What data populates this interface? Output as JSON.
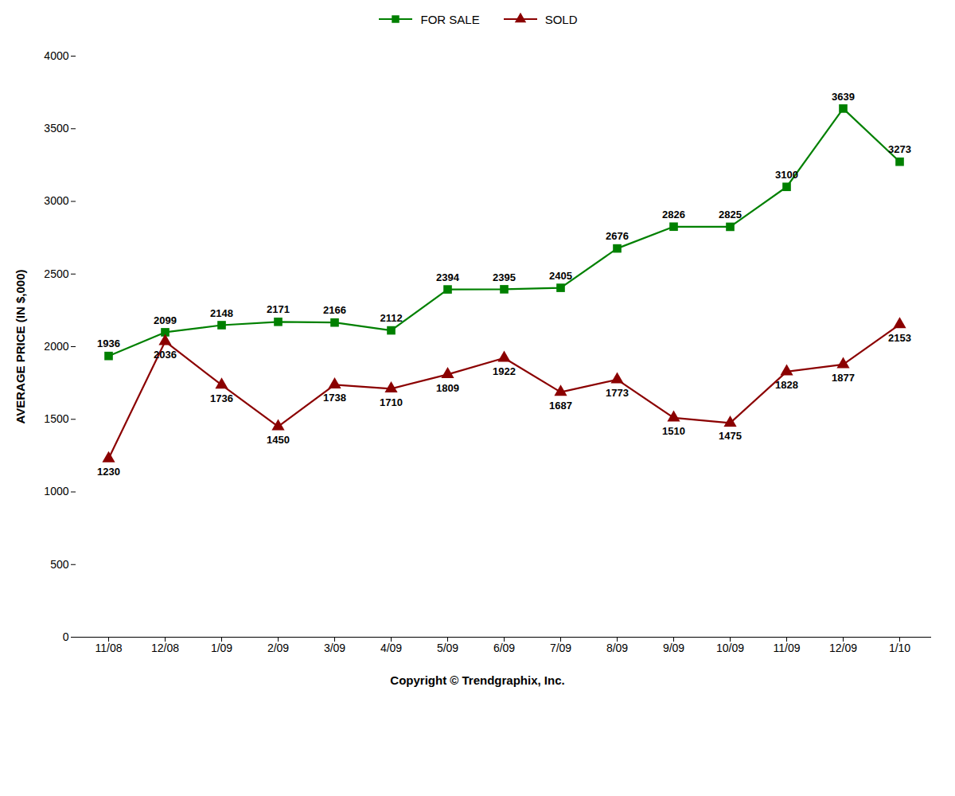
{
  "chart_data": {
    "type": "line",
    "ylabel": "AVERAGE PRICE (IN $,000)",
    "caption": "Copyright © Trendgraphix, Inc.",
    "categories": [
      "11/08",
      "12/08",
      "1/09",
      "2/09",
      "3/09",
      "4/09",
      "5/09",
      "6/09",
      "7/09",
      "8/09",
      "9/09",
      "10/09",
      "11/09",
      "12/09",
      "1/10"
    ],
    "series": [
      {
        "name": "FOR SALE",
        "color": "#008000",
        "marker": "square",
        "values": [
          1936,
          2099,
          2148,
          2171,
          2166,
          2112,
          2394,
          2395,
          2405,
          2676,
          2826,
          2825,
          3100,
          3639,
          3273
        ]
      },
      {
        "name": "SOLD",
        "color": "#8B0000",
        "marker": "triangle",
        "values": [
          1230,
          2036,
          1736,
          1450,
          1738,
          1710,
          1809,
          1922,
          1687,
          1773,
          1510,
          1475,
          1828,
          1877,
          2153
        ]
      }
    ],
    "ylim": [
      0,
      4000
    ],
    "yticks": [
      0,
      500,
      1000,
      1500,
      2000,
      2500,
      3000,
      3500,
      4000
    ],
    "grid": false,
    "legend": "top",
    "data_labels": true
  }
}
